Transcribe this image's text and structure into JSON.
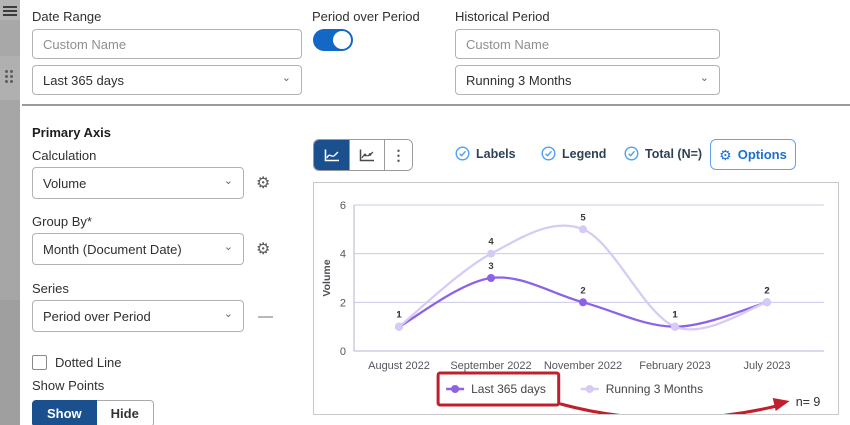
{
  "filters": {
    "date_range": {
      "label": "Date Range",
      "custom_name_placeholder": "Custom Name",
      "selected": "Last 365 days"
    },
    "period_over_period": {
      "label": "Period over Period",
      "enabled": true
    },
    "historical_period": {
      "label": "Historical Period",
      "custom_name_placeholder": "Custom Name",
      "selected": "Running 3 Months"
    }
  },
  "primary_axis": {
    "title": "Primary Axis",
    "calculation": {
      "label": "Calculation",
      "value": "Volume"
    },
    "group_by": {
      "label": "Group By*",
      "value": "Month (Document Date)"
    },
    "series": {
      "label": "Series",
      "value": "Period over Period"
    },
    "dotted_line": {
      "label": "Dotted Line",
      "checked": false
    },
    "show_points": {
      "label": "Show Points",
      "options": [
        "Show",
        "Hide"
      ],
      "selected": "Show"
    }
  },
  "chart_toolbar": {
    "chart_type_buttons": [
      {
        "name": "line-chart",
        "selected": true
      },
      {
        "name": "line-with-points-chart",
        "selected": false
      },
      {
        "name": "more-menu",
        "selected": false
      }
    ],
    "toggles": [
      {
        "label": "Labels",
        "checked": true
      },
      {
        "label": "Legend",
        "checked": true
      },
      {
        "label": "Total (N=)",
        "checked": true
      }
    ],
    "options_label": "Options"
  },
  "chart_data": {
    "type": "line",
    "categories": [
      "August 2022",
      "September 2022",
      "November 2022",
      "February 2023",
      "July 2023"
    ],
    "series": [
      {
        "name": "Last 365 days",
        "color": "#8c63e6",
        "values": [
          1,
          3,
          2,
          1,
          2
        ]
      },
      {
        "name": "Running 3 Months",
        "color": "#d7cbf6",
        "values": [
          1,
          4,
          5,
          1,
          2
        ]
      }
    ],
    "ylabel": "Volume",
    "ylim": [
      0,
      6
    ],
    "yticks": [
      0,
      2,
      4,
      6
    ],
    "grid": true,
    "legend_position": "bottom",
    "total_n": 9
  },
  "annotation": {
    "note": "n= 9",
    "highlighted_legend_item": "Last 365 days",
    "color": "#c11f2e"
  }
}
